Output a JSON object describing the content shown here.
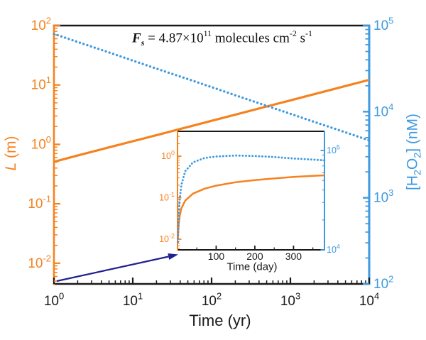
{
  "figure": {
    "background": "#ffffff",
    "annotation": {
      "text": "Fs = 4.87×10^11 molecules cm^-2 s^-1",
      "parts": [
        {
          "t": "F",
          "bi": true
        },
        {
          "t": "s",
          "bi": true,
          "sub": true
        },
        {
          "t": " = 4.87×10"
        },
        {
          "t": "11",
          "sup": true
        },
        {
          "t": " molecules cm"
        },
        {
          "t": "-2",
          "sup": true
        },
        {
          "t": " s"
        },
        {
          "t": "-1",
          "sup": true
        }
      ]
    },
    "left_axis_title": {
      "text": "L (m)",
      "parts": [
        {
          "t": "L",
          "i": true
        },
        {
          "t": " (m)"
        }
      ]
    },
    "right_axis_title": {
      "text": "[H2O2] (nM)",
      "parts": [
        {
          "t": "[H"
        },
        {
          "t": "2",
          "sub": true
        },
        {
          "t": "O"
        },
        {
          "t": "2",
          "sub": true
        },
        {
          "t": "] (nM)"
        }
      ]
    },
    "colors": {
      "orange": "#F5821F",
      "blue": "#3E9ADF",
      "navy": "#20208F",
      "black": "#1a1a1a"
    }
  },
  "chart_data": [
    {
      "id": "main",
      "type": "line",
      "title": "Fs = 4.87×10^11 molecules cm^-2 s^-1",
      "xlabel": "Time (yr)",
      "ylabel_left": "L (m)",
      "ylabel_right": "[H2O2] (nM)",
      "x_scale": "log",
      "x_range": [
        1,
        10000
      ],
      "y_left_scale": "log",
      "y_left_range": [
        0.00465,
        100
      ],
      "y_right_scale": "log",
      "y_right_range": [
        100,
        100000
      ],
      "x_tick_exponents": [
        0,
        1,
        2,
        3,
        4
      ],
      "y_left_tick_exponents": [
        2,
        1,
        0,
        -1,
        -2
      ],
      "y_right_tick_exponents": [
        5,
        4,
        3,
        2
      ],
      "grid": false,
      "legend": "none",
      "series": [
        {
          "name": "L",
          "axis": "left",
          "style": "solid",
          "color": "orange",
          "x": [
            1,
            2,
            5,
            10,
            20,
            50,
            100,
            200,
            500,
            1000,
            2000,
            5000,
            10000
          ],
          "y": [
            0.51,
            0.65,
            0.89,
            1.13,
            1.43,
            1.96,
            2.49,
            3.16,
            4.34,
            5.51,
            6.99,
            9.59,
            12.2
          ]
        },
        {
          "name": "H2O2",
          "axis": "right",
          "style": "dotted",
          "color": "blue",
          "x": [
            1,
            2,
            5,
            10,
            20,
            50,
            100,
            200,
            500,
            1000,
            2000,
            5000,
            10000
          ],
          "y": [
            80000,
            64500,
            48700,
            39200,
            31600,
            23900,
            19300,
            15500,
            11700,
            9460,
            7630,
            5760,
            4640
          ]
        }
      ]
    },
    {
      "id": "inset",
      "type": "line",
      "title": "",
      "xlabel": "Time (day)",
      "ylabel_left": "",
      "ylabel_right": "",
      "x_scale": "linear",
      "x_range": [
        0,
        380
      ],
      "x_ticks_major": [
        100,
        200,
        300
      ],
      "x_ticks_minor": [
        50,
        150,
        250,
        350
      ],
      "y_left_scale": "log",
      "y_left_range": [
        0.0055,
        3.9
      ],
      "y_right_scale": "log",
      "y_right_range": [
        10000,
        156000
      ],
      "y_left_tick_exponents": [
        0,
        -1,
        -2
      ],
      "y_right_tick_exponents": [
        5,
        4
      ],
      "grid": false,
      "legend": "none",
      "series": [
        {
          "name": "L",
          "axis": "left",
          "style": "solid",
          "color": "orange",
          "x": [
            1,
            3,
            6,
            10,
            20,
            40,
            70,
            100,
            150,
            200,
            250,
            300,
            350,
            380
          ],
          "y": [
            0.01,
            0.022,
            0.038,
            0.055,
            0.085,
            0.125,
            0.165,
            0.195,
            0.235,
            0.265,
            0.29,
            0.315,
            0.335,
            0.345
          ]
        },
        {
          "name": "H2O2",
          "axis": "right",
          "style": "dotted",
          "color": "blue",
          "x": [
            1,
            3,
            6,
            10,
            20,
            40,
            70,
            100,
            150,
            200,
            250,
            300,
            350,
            380
          ],
          "y": [
            12000,
            22000,
            33000,
            45000,
            62000,
            76000,
            84000,
            87000,
            89000,
            88000,
            86000,
            83000,
            81000,
            79500
          ]
        }
      ]
    }
  ]
}
